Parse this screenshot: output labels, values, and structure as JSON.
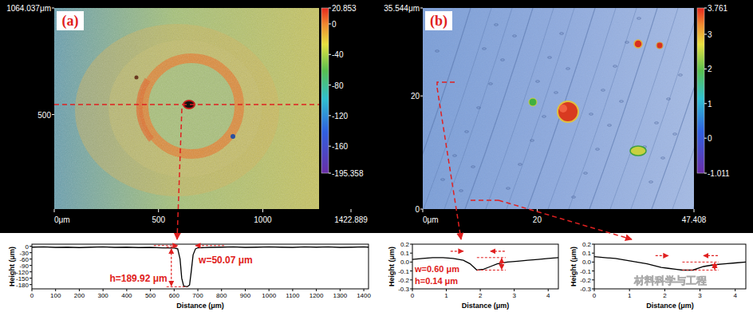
{
  "chart_data": [
    {
      "type": "image",
      "title": "(a)",
      "xlim": [
        0,
        1422.889
      ],
      "xticks": [
        {
          "value": 0,
          "label": "0μm"
        },
        500,
        1000,
        1422.889
      ],
      "ylim": [
        0,
        1064.037
      ],
      "yticks": [
        500,
        {
          "value": 1064.037,
          "label": "1064.037μm"
        }
      ],
      "colorbar": {
        "range": [
          -195.358,
          20.853
        ],
        "ticks": [
          20.853,
          0,
          -40,
          -80,
          -120,
          -160,
          -195.358
        ]
      }
    },
    {
      "type": "line",
      "xlabel": "Distance (μm)",
      "ylabel": "Height (μm)",
      "color": "#000000",
      "x": [
        0,
        50,
        100,
        150,
        200,
        250,
        300,
        350,
        400,
        450,
        500,
        550,
        600,
        615,
        625,
        632,
        640,
        655,
        665,
        672,
        680,
        690,
        700,
        750,
        800,
        850,
        900,
        950,
        1000,
        1050,
        1100,
        1150,
        1200,
        1250,
        1300,
        1350,
        1400,
        1420
      ],
      "values": [
        -4,
        -3,
        -5,
        -4,
        -6,
        -4,
        -3,
        -5,
        -4,
        -6,
        -5,
        -7,
        -8,
        -12,
        -60,
        -150,
        -186,
        -190,
        -182,
        -120,
        -40,
        -12,
        -7,
        -5,
        -4,
        -3,
        -5,
        -4,
        -3,
        -4,
        -5,
        -3,
        -4,
        -3,
        -5,
        -4,
        -3,
        -4
      ],
      "xlim": [
        0,
        1420
      ],
      "xticks": [
        0,
        100,
        200,
        300,
        400,
        500,
        600,
        700,
        800,
        900,
        1000,
        1100,
        1200,
        1300,
        1400
      ],
      "ylim": [
        -200,
        10
      ],
      "yticks": [
        0,
        -30,
        -60,
        -90,
        -120,
        -150,
        -180
      ],
      "annotations": [
        "w=50.07 μm",
        "h=189.92 μm"
      ]
    },
    {
      "type": "image",
      "title": "(b)",
      "xlim": [
        0,
        47.408
      ],
      "xticks": [
        {
          "value": 0,
          "label": "0μm"
        },
        20,
        47.408
      ],
      "ylim": [
        0,
        35.544
      ],
      "yticks": [
        0,
        20,
        {
          "value": 35.544,
          "label": "35.544μm"
        }
      ],
      "colorbar": {
        "range": [
          -1.011,
          3.761
        ],
        "ticks": [
          3.761,
          3,
          2,
          1,
          0,
          -1.011
        ]
      }
    },
    {
      "type": "line",
      "xlabel": "Distance (μm)",
      "ylabel": "Height (μm)",
      "color": "#000000",
      "x": [
        0,
        0.3,
        0.6,
        0.9,
        1.2,
        1.5,
        1.7,
        1.9,
        2.1,
        2.3,
        2.5,
        2.8,
        3.1,
        3.4,
        3.7,
        4.0,
        4.3
      ],
      "values": [
        0.03,
        0.04,
        0.05,
        0.05,
        0.04,
        0.02,
        -0.02,
        -0.09,
        -0.08,
        -0.05,
        -0.02,
        0.0,
        0.01,
        0.02,
        0.03,
        0.04,
        0.05
      ],
      "xlim": [
        0,
        4.3
      ],
      "xticks": [
        0,
        1,
        2,
        3,
        4
      ],
      "ylim": [
        -0.3,
        0.2
      ],
      "yticks": [
        0.2,
        0.1,
        {
          "value": 0,
          "label": "0.0"
        },
        -0.1,
        -0.2,
        -0.3
      ],
      "annotations": [
        "w=0.60 μm",
        "h=0.14 μm"
      ]
    },
    {
      "type": "line",
      "xlabel": "Distance (μm)",
      "ylabel": "Height (μm)",
      "color": "#000000",
      "x": [
        0,
        0.3,
        0.6,
        0.9,
        1.2,
        1.5,
        1.7,
        1.9,
        2.1,
        2.3,
        2.5,
        2.8,
        3.1,
        3.4,
        3.7,
        4.0,
        4.3
      ],
      "values": [
        0.06,
        0.05,
        0.04,
        0.02,
        0.0,
        -0.02,
        -0.04,
        -0.06,
        -0.07,
        -0.08,
        -0.09,
        -0.09,
        -0.05,
        -0.03,
        -0.02,
        -0.01,
        0.0
      ],
      "xlim": [
        0,
        4.3
      ],
      "xticks": [
        0,
        1,
        2,
        3,
        4
      ],
      "ylim": [
        -0.3,
        0.2
      ],
      "yticks": [
        0.2,
        0.1,
        {
          "value": 0,
          "label": "0.0"
        },
        -0.1,
        -0.2,
        -0.3
      ]
    }
  ],
  "watermark": "材料科学与工程"
}
